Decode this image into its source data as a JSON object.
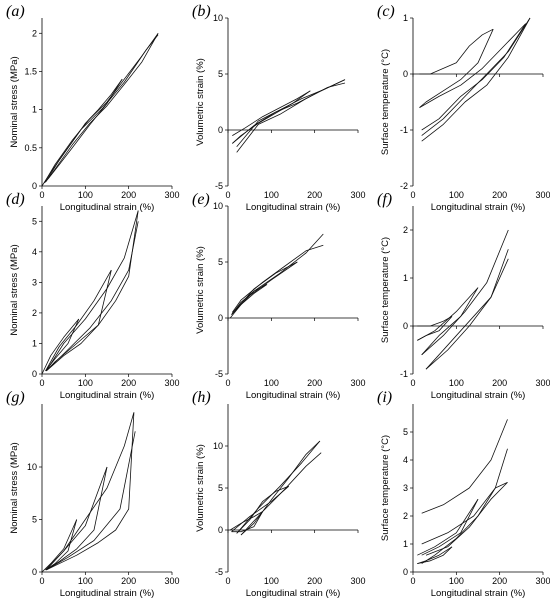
{
  "chart_data": [
    {
      "id": "a",
      "label": "(a)",
      "type": "line",
      "xlabel": "Longitudinal strain (%)",
      "ylabel": "Nominal stress (MPa)",
      "xlim": [
        0,
        300
      ],
      "ylim": [
        0,
        2.2
      ],
      "xticks": [
        0,
        100,
        200,
        300
      ],
      "yticks": [
        0,
        0.5,
        1,
        1.5,
        2
      ],
      "series": [
        {
          "x": [
            0,
            20,
            50,
            80,
            100,
            130,
            160,
            185
          ],
          "y": [
            0,
            0.18,
            0.42,
            0.66,
            0.82,
            1.0,
            1.2,
            1.4
          ]
        },
        {
          "x": [
            185,
            150,
            110,
            70,
            40,
            15,
            5
          ],
          "y": [
            1.4,
            1.08,
            0.8,
            0.5,
            0.28,
            0.1,
            0.04
          ]
        },
        {
          "x": [
            5,
            30,
            70,
            110,
            150,
            190,
            230,
            268
          ],
          "y": [
            0.04,
            0.28,
            0.6,
            0.88,
            1.1,
            1.4,
            1.7,
            2.0
          ]
        },
        {
          "x": [
            268,
            230,
            190,
            150,
            110,
            70,
            30,
            8
          ],
          "y": [
            2.0,
            1.62,
            1.33,
            1.05,
            0.82,
            0.54,
            0.22,
            0.05
          ]
        },
        {
          "x": [
            8,
            40,
            90,
            140,
            190,
            240,
            268
          ],
          "y": [
            0.05,
            0.34,
            0.74,
            1.02,
            1.36,
            1.78,
            1.98
          ]
        }
      ]
    },
    {
      "id": "b",
      "label": "(b)",
      "type": "line",
      "xlabel": "Longitudinal strain (%)",
      "ylabel": "Volumetric strain (%)",
      "xlim": [
        0,
        300
      ],
      "ylim": [
        -5,
        10
      ],
      "xticks": [
        0,
        100,
        200,
        300
      ],
      "yticks": [
        -5,
        0,
        5,
        10
      ],
      "series": [
        {
          "x": [
            10,
            40,
            80,
            120,
            160,
            190
          ],
          "y": [
            -0.5,
            0.2,
            1.2,
            2.0,
            2.8,
            3.5
          ]
        },
        {
          "x": [
            190,
            150,
            110,
            70,
            30,
            10
          ],
          "y": [
            3.5,
            2.4,
            1.5,
            0.6,
            -0.5,
            -1.2
          ]
        },
        {
          "x": [
            10,
            60,
            110,
            160,
            210,
            270
          ],
          "y": [
            -1.2,
            0.4,
            1.6,
            2.4,
            3.4,
            4.5
          ]
        },
        {
          "x": [
            270,
            220,
            170,
            120,
            70,
            20
          ],
          "y": [
            4.5,
            3.6,
            2.8,
            1.8,
            0.8,
            -1.5
          ]
        },
        {
          "x": [
            20,
            70,
            120,
            180,
            230,
            270
          ],
          "y": [
            -2.0,
            0.5,
            1.4,
            2.8,
            3.8,
            4.2
          ]
        }
      ]
    },
    {
      "id": "c",
      "label": "(c)",
      "type": "line",
      "xlabel": "Longitudinal strain (%)",
      "ylabel": "Surface temperature (°C)",
      "xlim": [
        0,
        300
      ],
      "ylim": [
        -2,
        1
      ],
      "xticks": [
        0,
        100,
        200,
        300
      ],
      "yticks": [
        -2,
        -1,
        0,
        1
      ],
      "series": [
        {
          "x": [
            15,
            40,
            70,
            100,
            130,
            160,
            185
          ],
          "y": [
            0.0,
            0.0,
            0.1,
            0.2,
            0.5,
            0.7,
            0.8
          ]
        },
        {
          "x": [
            185,
            150,
            110,
            70,
            30,
            15
          ],
          "y": [
            0.8,
            0.2,
            -0.1,
            -0.3,
            -0.5,
            -0.6
          ]
        },
        {
          "x": [
            15,
            60,
            110,
            160,
            210,
            260
          ],
          "y": [
            -0.6,
            -0.4,
            -0.2,
            0.1,
            0.5,
            0.9
          ]
        },
        {
          "x": [
            260,
            210,
            160,
            110,
            60,
            20
          ],
          "y": [
            0.9,
            0.3,
            -0.1,
            -0.4,
            -0.8,
            -1.0
          ]
        },
        {
          "x": [
            20,
            70,
            120,
            170,
            220,
            270
          ],
          "y": [
            -1.2,
            -0.9,
            -0.5,
            -0.2,
            0.3,
            1.0
          ]
        },
        {
          "x": [
            270,
            220,
            170,
            120,
            70,
            20
          ],
          "y": [
            1.0,
            0.4,
            0.0,
            -0.4,
            -0.8,
            -1.1
          ]
        }
      ]
    },
    {
      "id": "d",
      "label": "(d)",
      "type": "line",
      "xlabel": "Longitudinal strain (%)",
      "ylabel": "Nominal stress (MPa)",
      "xlim": [
        0,
        300
      ],
      "ylim": [
        0,
        5.5
      ],
      "xticks": [
        0,
        100,
        200,
        300
      ],
      "yticks": [
        0,
        1,
        2,
        3,
        4,
        5
      ],
      "series": [
        {
          "x": [
            0,
            20,
            50,
            85
          ],
          "y": [
            0,
            0.6,
            1.2,
            1.8
          ]
        },
        {
          "x": [
            85,
            60,
            30,
            8
          ],
          "y": [
            1.8,
            1.0,
            0.5,
            0.1
          ]
        },
        {
          "x": [
            8,
            40,
            80,
            120,
            160
          ],
          "y": [
            0.1,
            0.9,
            1.6,
            2.4,
            3.4
          ]
        },
        {
          "x": [
            160,
            130,
            90,
            50,
            10
          ],
          "y": [
            3.4,
            1.6,
            1.0,
            0.6,
            0.1
          ]
        },
        {
          "x": [
            10,
            50,
            100,
            150,
            190,
            222
          ],
          "y": [
            0.1,
            1.0,
            1.8,
            2.8,
            3.8,
            5.35
          ]
        },
        {
          "x": [
            222,
            200,
            170,
            130,
            80,
            30,
            10
          ],
          "y": [
            5.35,
            3.2,
            2.4,
            1.6,
            1.0,
            0.4,
            0.1
          ]
        },
        {
          "x": [
            10,
            60,
            110,
            160,
            200,
            222
          ],
          "y": [
            0.1,
            0.8,
            1.5,
            2.4,
            3.4,
            5.0
          ]
        }
      ]
    },
    {
      "id": "e",
      "label": "(e)",
      "type": "line",
      "xlabel": "Longitudinal strain (%)",
      "ylabel": "Volumetric strain (%)",
      "xlim": [
        0,
        300
      ],
      "ylim": [
        -5,
        10
      ],
      "xticks": [
        0,
        100,
        200,
        300
      ],
      "yticks": [
        -5,
        0,
        5,
        10
      ],
      "series": [
        {
          "x": [
            5,
            30,
            60,
            90
          ],
          "y": [
            0.0,
            1.2,
            2.2,
            3.0
          ]
        },
        {
          "x": [
            90,
            60,
            30,
            8
          ],
          "y": [
            3.0,
            2.4,
            1.4,
            0.3
          ]
        },
        {
          "x": [
            8,
            50,
            100,
            160
          ],
          "y": [
            0.3,
            2.0,
            3.4,
            5.0
          ]
        },
        {
          "x": [
            160,
            110,
            60,
            10
          ],
          "y": [
            5.0,
            4.0,
            2.6,
            0.4
          ]
        },
        {
          "x": [
            10,
            60,
            120,
            180,
            220
          ],
          "y": [
            0.4,
            2.4,
            4.0,
            5.8,
            7.5
          ]
        },
        {
          "x": [
            220,
            180,
            130,
            80,
            30,
            10
          ],
          "y": [
            6.5,
            6.0,
            4.6,
            3.2,
            1.6,
            0.5
          ]
        }
      ]
    },
    {
      "id": "f",
      "label": "(f)",
      "type": "line",
      "xlabel": "Longitudinal strain (%)",
      "ylabel": "Surface temperature (°C)",
      "xlim": [
        0,
        300
      ],
      "ylim": [
        -1,
        2.5
      ],
      "xticks": [
        0,
        100,
        200,
        300
      ],
      "yticks": [
        -1,
        0,
        1,
        2
      ],
      "series": [
        {
          "x": [
            10,
            40,
            70,
            90
          ],
          "y": [
            0.0,
            0.0,
            0.1,
            0.2
          ]
        },
        {
          "x": [
            90,
            60,
            30,
            10
          ],
          "y": [
            0.2,
            -0.1,
            -0.2,
            -0.3
          ]
        },
        {
          "x": [
            10,
            50,
            100,
            150
          ],
          "y": [
            -0.3,
            -0.1,
            0.3,
            0.8
          ]
        },
        {
          "x": [
            150,
            110,
            60,
            20
          ],
          "y": [
            0.8,
            0.2,
            -0.2,
            -0.6
          ]
        },
        {
          "x": [
            20,
            70,
            120,
            170,
            220
          ],
          "y": [
            -0.6,
            -0.2,
            0.3,
            0.9,
            2.0
          ]
        },
        {
          "x": [
            220,
            180,
            130,
            80,
            30
          ],
          "y": [
            1.4,
            0.6,
            0.0,
            -0.5,
            -0.9
          ]
        },
        {
          "x": [
            30,
            80,
            130,
            180,
            220
          ],
          "y": [
            -0.9,
            -0.4,
            0.1,
            0.6,
            1.6
          ]
        }
      ]
    },
    {
      "id": "g",
      "label": "(g)",
      "type": "line",
      "xlabel": "Longitudinal strain (%)",
      "ylabel": "Nominal stress (MPa)",
      "xlim": [
        0,
        300
      ],
      "ylim": [
        0,
        16
      ],
      "xticks": [
        0,
        100,
        200,
        300
      ],
      "yticks": [
        0,
        5,
        10
      ],
      "series": [
        {
          "x": [
            0,
            20,
            50,
            80
          ],
          "y": [
            0,
            0.8,
            2.2,
            5.0
          ]
        },
        {
          "x": [
            80,
            60,
            30,
            8
          ],
          "y": [
            5.0,
            2.0,
            0.8,
            0.2
          ]
        },
        {
          "x": [
            8,
            50,
            100,
            150
          ],
          "y": [
            0.2,
            2.0,
            4.4,
            10.0
          ]
        },
        {
          "x": [
            150,
            120,
            80,
            40,
            10
          ],
          "y": [
            10.0,
            4.0,
            2.2,
            1.0,
            0.2
          ]
        },
        {
          "x": [
            10,
            50,
            100,
            150,
            190,
            212
          ],
          "y": [
            0.2,
            2.0,
            5.0,
            8.0,
            12.0,
            15.2
          ]
        },
        {
          "x": [
            212,
            200,
            170,
            130,
            80,
            30,
            10
          ],
          "y": [
            15.2,
            6.0,
            4.0,
            2.8,
            1.6,
            0.6,
            0.2
          ]
        },
        {
          "x": [
            10,
            60,
            120,
            180,
            215
          ],
          "y": [
            0.2,
            1.4,
            3.0,
            6.0,
            13.4
          ]
        }
      ]
    },
    {
      "id": "h",
      "label": "(h)",
      "type": "line",
      "xlabel": "Longitudinal strain (%)",
      "ylabel": "Volumetric strain (%)",
      "xlim": [
        0,
        300
      ],
      "ylim": [
        -5,
        15
      ],
      "xticks": [
        0,
        100,
        200,
        300
      ],
      "yticks": [
        -5,
        0,
        5,
        10
      ],
      "series": [
        {
          "x": [
            5,
            30,
            60,
            80
          ],
          "y": [
            0.0,
            0.8,
            1.6,
            2.2
          ]
        },
        {
          "x": [
            80,
            60,
            30,
            8
          ],
          "y": [
            2.2,
            0.4,
            -0.2,
            -0.2
          ]
        },
        {
          "x": [
            8,
            50,
            100,
            140
          ],
          "y": [
            -0.2,
            1.6,
            3.4,
            5.2
          ]
        },
        {
          "x": [
            140,
            110,
            80,
            50,
            20
          ],
          "y": [
            5.2,
            4.6,
            3.4,
            1.2,
            -0.4
          ]
        },
        {
          "x": [
            20,
            70,
            120,
            170,
            212
          ],
          "y": [
            -0.4,
            2.6,
            5.2,
            8.0,
            10.6
          ]
        },
        {
          "x": [
            212,
            180,
            140,
            100,
            60,
            30
          ],
          "y": [
            10.6,
            9.0,
            6.2,
            3.6,
            0.8,
            -0.6
          ]
        },
        {
          "x": [
            30,
            80,
            130,
            180,
            215
          ],
          "y": [
            -0.6,
            2.2,
            4.8,
            7.6,
            9.2
          ]
        }
      ]
    },
    {
      "id": "i",
      "label": "(i)",
      "type": "line",
      "xlabel": "Longitudinal strain (%)",
      "ylabel": "Surface temperature (°C)",
      "xlim": [
        0,
        300
      ],
      "ylim": [
        0,
        6
      ],
      "xticks": [
        0,
        100,
        200,
        300
      ],
      "yticks": [
        0,
        1,
        2,
        3,
        4,
        5
      ],
      "series": [
        {
          "x": [
            10,
            40,
            70,
            90
          ],
          "y": [
            0.3,
            0.4,
            0.6,
            0.9
          ]
        },
        {
          "x": [
            90,
            60,
            30,
            10
          ],
          "y": [
            0.9,
            0.6,
            0.4,
            0.3
          ]
        },
        {
          "x": [
            10,
            50,
            100,
            150
          ],
          "y": [
            0.6,
            0.9,
            1.4,
            2.6
          ]
        },
        {
          "x": [
            150,
            110,
            60,
            20
          ],
          "y": [
            2.6,
            1.4,
            0.9,
            0.6
          ]
        },
        {
          "x": [
            20,
            70,
            130,
            180,
            218
          ],
          "y": [
            2.1,
            2.4,
            3.0,
            4.0,
            5.45
          ]
        },
        {
          "x": [
            218,
            190,
            150,
            100,
            50,
            20
          ],
          "y": [
            4.4,
            3.0,
            2.0,
            1.2,
            0.6,
            0.3
          ]
        },
        {
          "x": [
            20,
            80,
            140,
            190,
            218
          ],
          "y": [
            1.0,
            1.4,
            2.0,
            3.0,
            3.2
          ]
        },
        {
          "x": [
            218,
            180,
            130,
            80,
            30
          ],
          "y": [
            3.2,
            2.6,
            1.6,
            0.9,
            0.6
          ]
        }
      ]
    }
  ]
}
